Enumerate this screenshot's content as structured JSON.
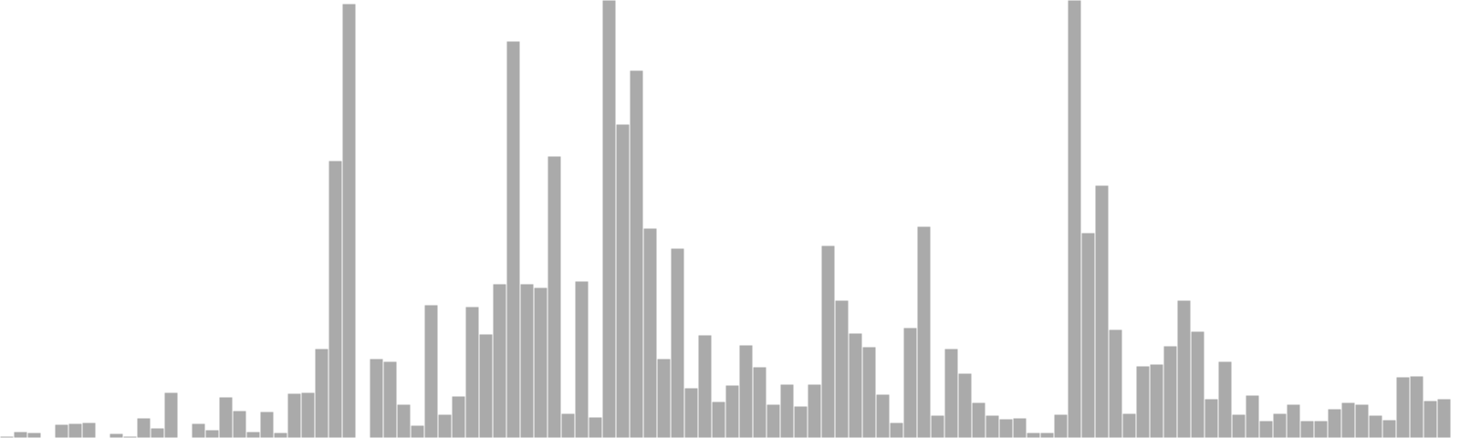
{
  "colors": {
    "bar_fill": "#aaaaaa",
    "bar_stroke": "#ffffff",
    "background": "#ffffff"
  },
  "chart_data": {
    "type": "bar",
    "title": "",
    "xlabel": "",
    "ylabel": "",
    "grid": false,
    "legend": "none",
    "ylim": [
      0,
      480
    ],
    "values": [
      2,
      7,
      6,
      1,
      15,
      16,
      17,
      1,
      5,
      2,
      22,
      11,
      50,
      0,
      16,
      9,
      45,
      30,
      7,
      29,
      6,
      49,
      50,
      98,
      304,
      476,
      0,
      87,
      84,
      37,
      14,
      146,
      26,
      46,
      144,
      114,
      169,
      435,
      169,
      165,
      309,
      27,
      172,
      23,
      480,
      344,
      403,
      230,
      87,
      208,
      55,
      113,
      40,
      58,
      102,
      78,
      37,
      59,
      35,
      59,
      211,
      151,
      115,
      100,
      48,
      17,
      121,
      232,
      25,
      98,
      71,
      39,
      25,
      21,
      22,
      6,
      6,
      26,
      480,
      225,
      277,
      119,
      27,
      79,
      81,
      101,
      151,
      117,
      43,
      84,
      26,
      47,
      19,
      27,
      37,
      19,
      19,
      32,
      39,
      37,
      25,
      20,
      67,
      68,
      41,
      43
    ]
  }
}
